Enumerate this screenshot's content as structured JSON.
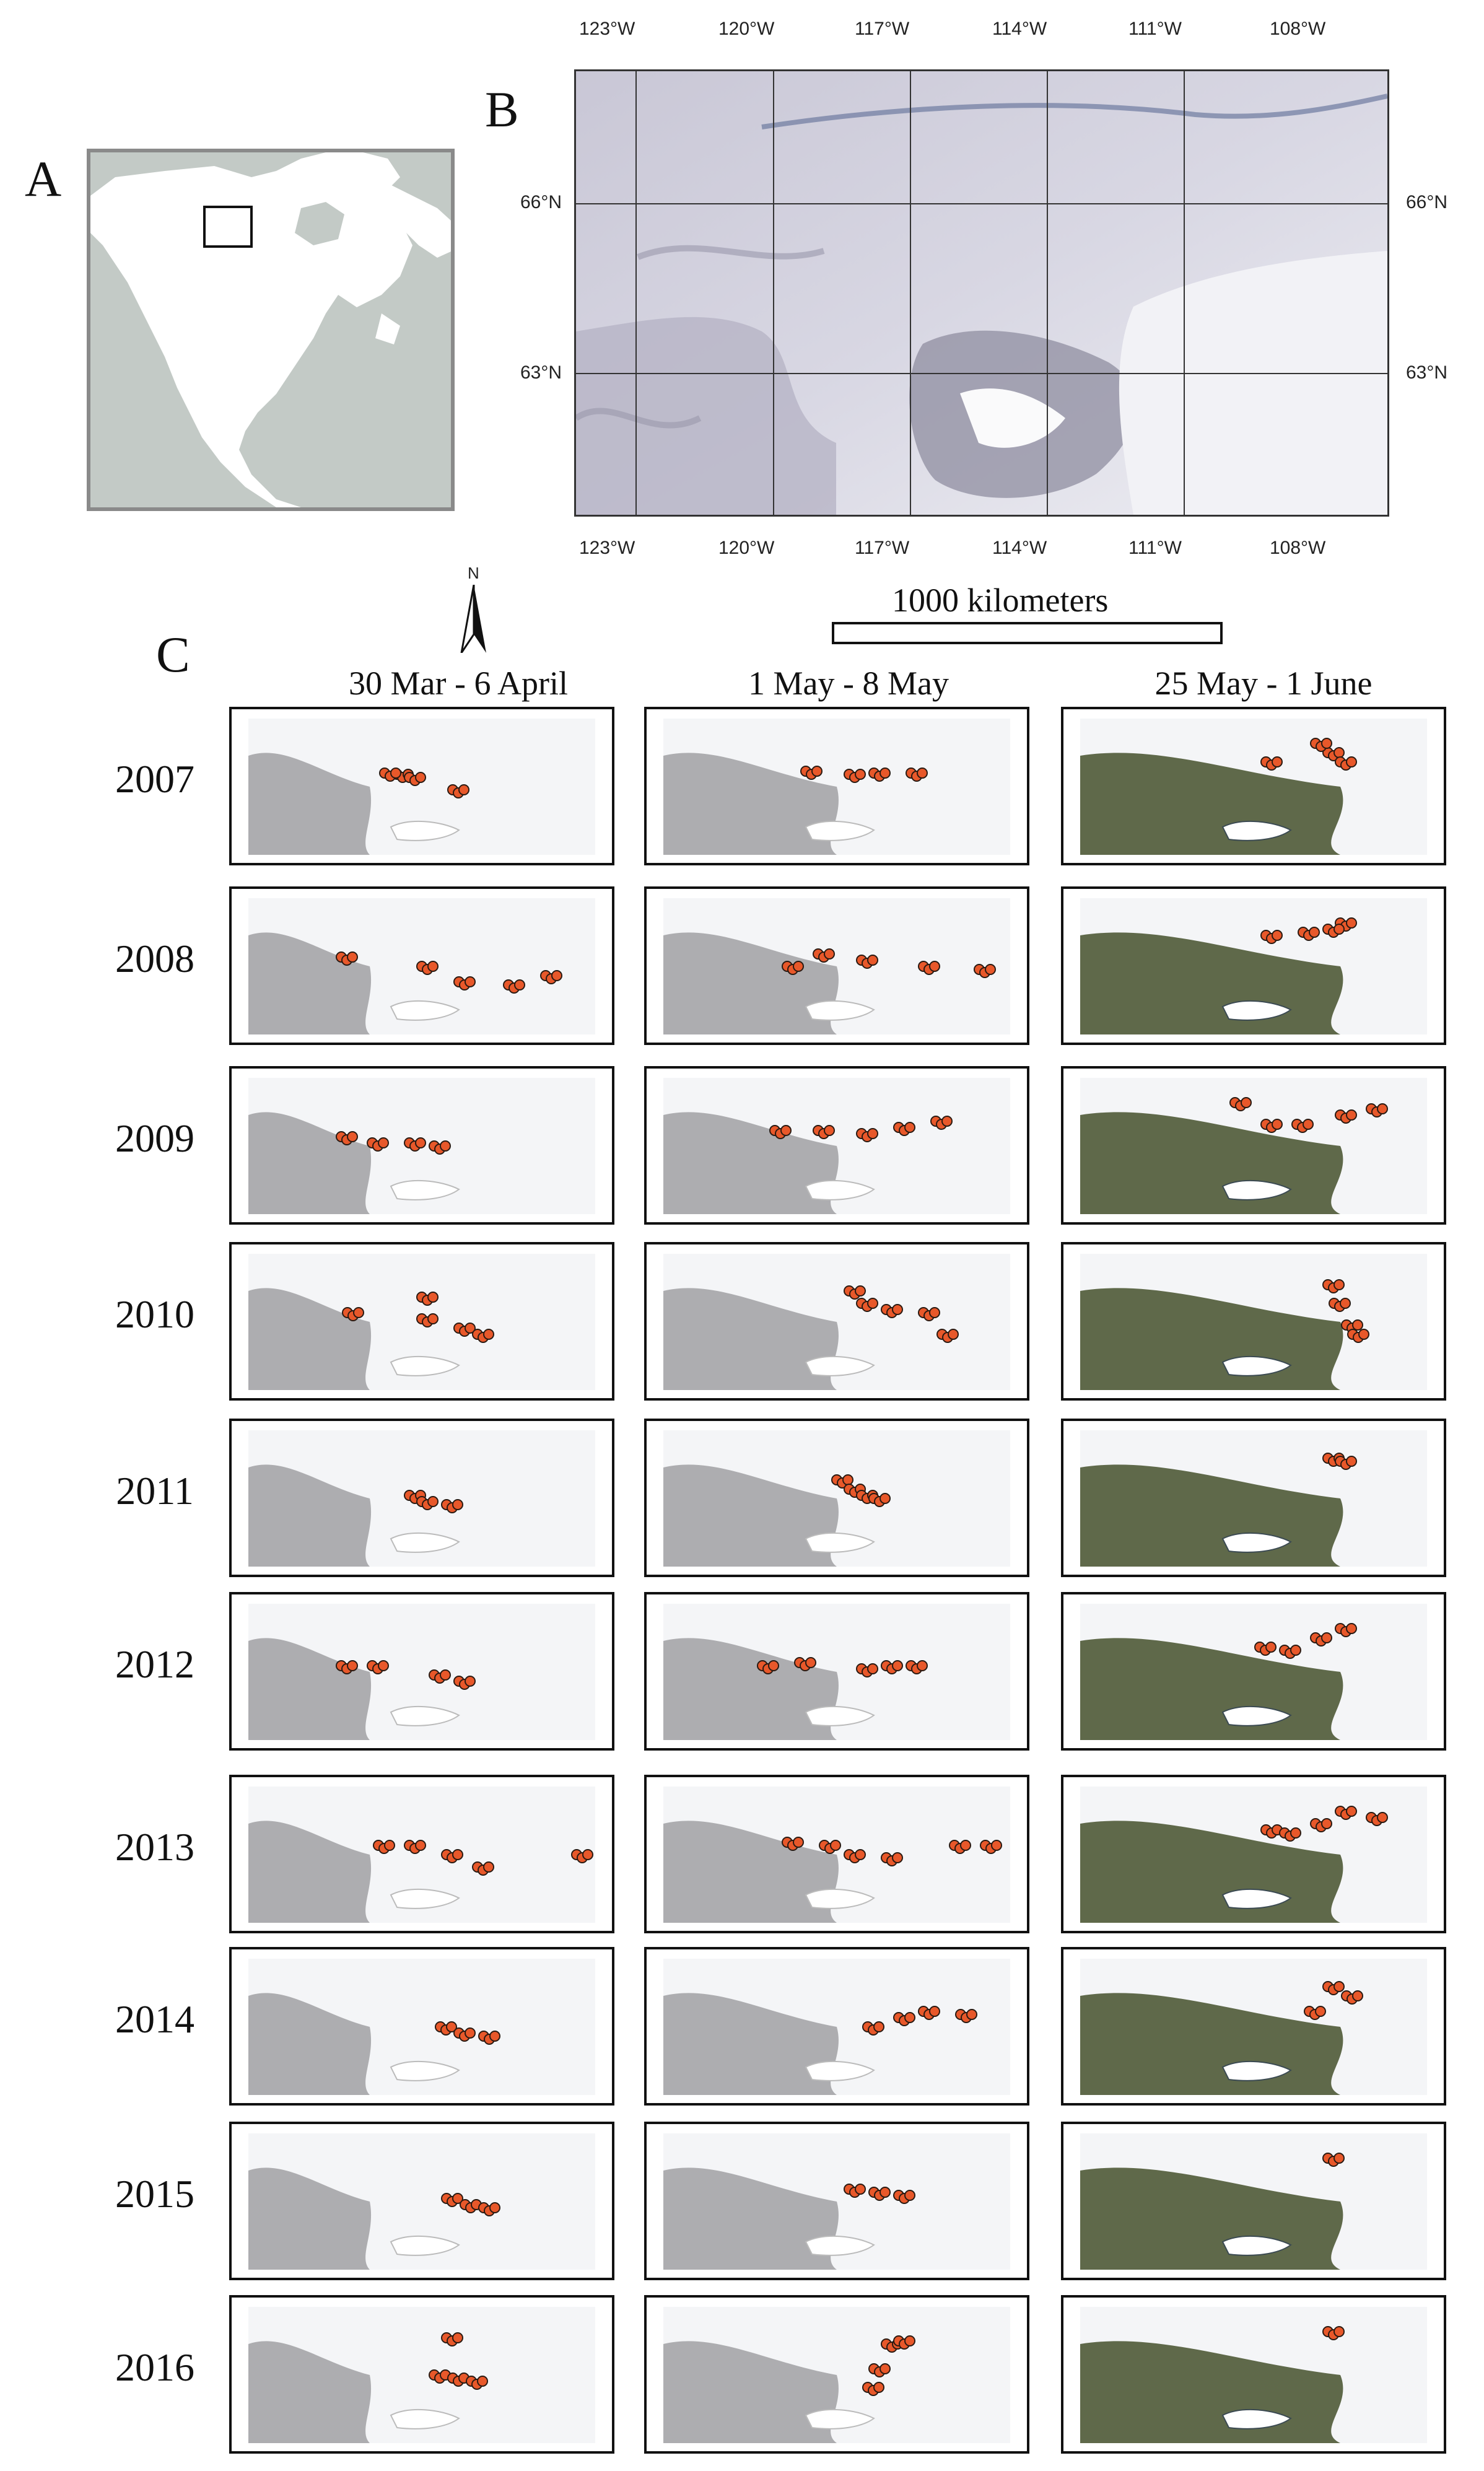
{
  "panels": {
    "a_label": "A",
    "b_label": "B",
    "c_label": "C"
  },
  "map_b": {
    "lon_ticks": [
      "123°W",
      "120°W",
      "117°W",
      "114°W",
      "111°W",
      "108°W"
    ],
    "lat_ticks": [
      "66°N",
      "63°N"
    ]
  },
  "north_arrow": "N",
  "scale_bar": "1000 kilometers",
  "grid": {
    "periods": [
      "30 Mar - 6 April",
      "1 May - 8 May",
      "25 May - 1 June"
    ],
    "years": [
      "2007",
      "2008",
      "2009",
      "2010",
      "2011",
      "2012",
      "2013",
      "2014",
      "2015",
      "2016"
    ]
  },
  "colors": {
    "point_fill": "#e8582a",
    "point_stroke": "#2a1a12",
    "snow": "#f4f5f7",
    "tundra_early": "#8e8f91",
    "tundra_late": "#4f5a36"
  }
}
